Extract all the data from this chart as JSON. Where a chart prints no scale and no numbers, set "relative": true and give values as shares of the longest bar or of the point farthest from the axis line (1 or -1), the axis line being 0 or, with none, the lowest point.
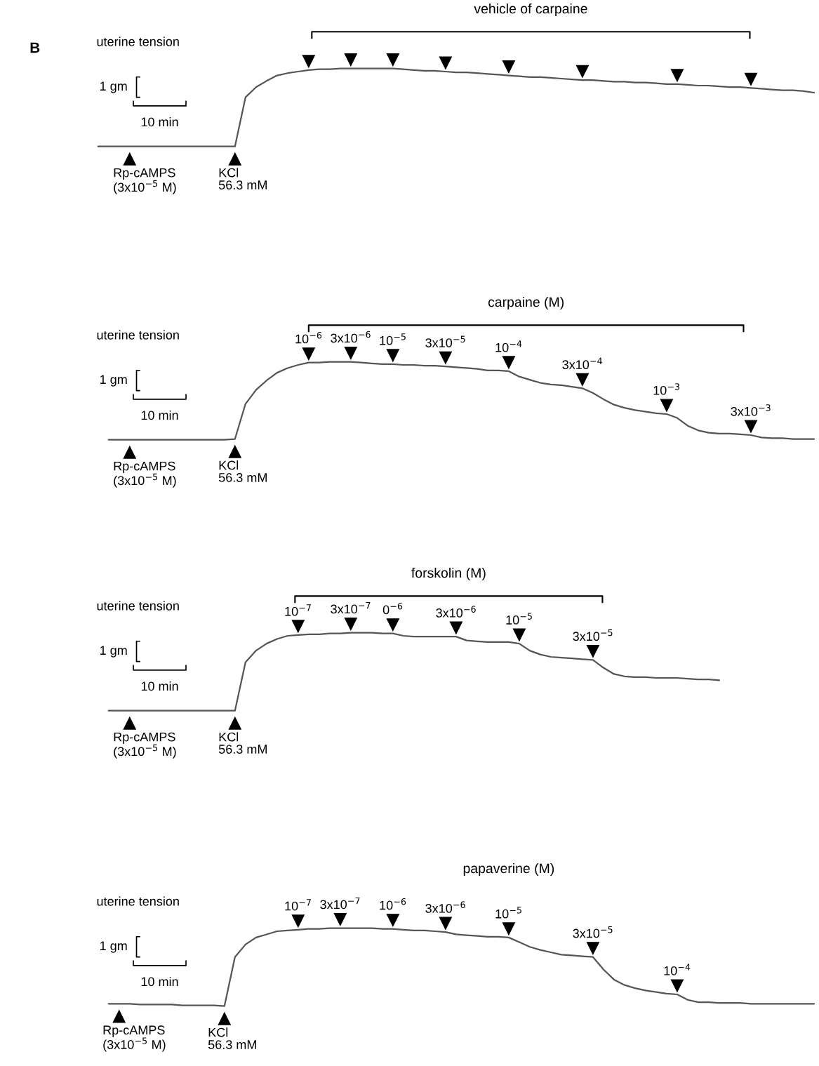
{
  "chart_data": [
    {
      "type": "line",
      "relative": true,
      "title": "vehicle of carpaine",
      "ylabel": "uterine tension",
      "tick_labels": false,
      "grid": false,
      "line_style": "solid",
      "categories": [
        null,
        null,
        null,
        null,
        null,
        null,
        null,
        null,
        null,
        null,
        null,
        null,
        null,
        null,
        null,
        null,
        null,
        null,
        null,
        null,
        null,
        null,
        null,
        null,
        null,
        null,
        null,
        null,
        null,
        null,
        null,
        null,
        null,
        null,
        null,
        null,
        null,
        null,
        null,
        null,
        null,
        null,
        null,
        null,
        null,
        null,
        null,
        null,
        null,
        null,
        null,
        null,
        null,
        null,
        null,
        null,
        null,
        null,
        null,
        null,
        null,
        null,
        null,
        null,
        null,
        null,
        null,
        null,
        null
      ],
      "series": [
        {
          "color": "#555555",
          "values": [
            0,
            0,
            0,
            0,
            0,
            0,
            0,
            0,
            0,
            0,
            0,
            0,
            0,
            0,
            0.63,
            0.76,
            0.84,
            0.91,
            0.94,
            0.96,
            0.98,
            0.99,
            0.99,
            1,
            1,
            1,
            1,
            1,
            1,
            0.99,
            0.98,
            0.97,
            0.97,
            0.96,
            0.95,
            0.95,
            0.94,
            0.93,
            0.92,
            0.91,
            0.9,
            0.89,
            0.89,
            0.88,
            0.87,
            0.86,
            0.85,
            0.85,
            0.84,
            0.83,
            0.83,
            0.82,
            0.82,
            0.81,
            0.8,
            0.8,
            0.79,
            0.78,
            0.78,
            0.77,
            0.76,
            0.76,
            0.75,
            0.74,
            0.73,
            0.72,
            0.72,
            0.71,
            0.69
          ]
        }
      ],
      "annotations": [
        "B",
        "1 gm",
        "10 min",
        "Rp-cAMPS\n(3x10$^{−5}$ M)",
        "KCl\n56.3 mM"
      ]
    },
    {
      "type": "line",
      "relative": true,
      "title": "carpaine (M)",
      "ylabel": "uterine tension",
      "tick_labels": false,
      "grid": false,
      "line_style": "solid",
      "categories": [
        null,
        null,
        null,
        null,
        null,
        null,
        null,
        null,
        null,
        null,
        null,
        null,
        null,
        null,
        null,
        null,
        null,
        null,
        null,
        null,
        null,
        null,
        null,
        null,
        null,
        null,
        null,
        null,
        null,
        null,
        null,
        null,
        null,
        null,
        null,
        null,
        null,
        null,
        null,
        null,
        null,
        null,
        null,
        null,
        null,
        null,
        null,
        null,
        null,
        null,
        null,
        null,
        null,
        null,
        null,
        null,
        null,
        null,
        null,
        null,
        null,
        null,
        null,
        null,
        null,
        null,
        null,
        null,
        null
      ],
      "series": [
        {
          "color": "#555555",
          "values": [
            null,
            0,
            0,
            0,
            0,
            0,
            0,
            0,
            0,
            0,
            0,
            0,
            0,
            0.01,
            0.46,
            0.64,
            0.76,
            0.86,
            0.92,
            0.96,
            0.99,
            0.99,
            1,
            1,
            1,
            0.99,
            0.98,
            0.97,
            0.97,
            0.96,
            0.96,
            0.95,
            0.95,
            0.94,
            0.93,
            0.92,
            0.91,
            0.89,
            0.89,
            0.88,
            0.81,
            0.77,
            0.73,
            0.71,
            0.7,
            0.68,
            0.66,
            0.6,
            0.52,
            0.45,
            0.41,
            0.38,
            0.36,
            0.34,
            0.33,
            0.28,
            0.18,
            0.12,
            0.09,
            0.08,
            0.08,
            0.07,
            0.06,
            0.03,
            0.02,
            0.02,
            0.01,
            0.01,
            0.01
          ]
        }
      ],
      "annotations": [
        "1 gm",
        "10 min",
        "Rp-cAMPS\n(3x10$^{−5}$ M)",
        "KCl\n56.3 mM",
        "10$^{−6}$",
        "3x10$^{−6}$",
        "10$^{−5}$",
        "3x10$^{−5}$",
        "10$^{−4}$",
        "3x10$^{−4}$",
        "10$^{−3}$",
        "3x10$^{−3}$"
      ]
    },
    {
      "type": "line",
      "relative": true,
      "title": "forskolin (M)",
      "ylabel": "uterine tension",
      "tick_labels": false,
      "grid": false,
      "line_style": "solid",
      "categories": [
        null,
        null,
        null,
        null,
        null,
        null,
        null,
        null,
        null,
        null,
        null,
        null,
        null,
        null,
        null,
        null,
        null,
        null,
        null,
        null,
        null,
        null,
        null,
        null,
        null,
        null,
        null,
        null,
        null,
        null,
        null,
        null,
        null,
        null,
        null,
        null,
        null,
        null,
        null,
        null,
        null,
        null,
        null,
        null,
        null,
        null,
        null,
        null,
        null,
        null,
        null,
        null,
        null,
        null,
        null,
        null,
        null,
        null,
        null,
        null,
        null,
        null,
        null,
        null,
        null,
        null,
        null,
        null,
        null
      ],
      "series": [
        {
          "color": "#555555",
          "values": [
            null,
            0,
            0,
            0,
            0,
            0,
            0,
            0,
            0,
            0,
            0,
            0,
            0,
            0,
            0.62,
            0.77,
            0.86,
            0.92,
            0.96,
            0.97,
            0.98,
            0.98,
            0.99,
            0.99,
            1,
            1,
            1,
            0.99,
            0.99,
            0.96,
            0.95,
            0.95,
            0.95,
            0.95,
            0.95,
            0.9,
            0.89,
            0.88,
            0.88,
            0.88,
            0.86,
            0.77,
            0.72,
            0.69,
            0.68,
            0.67,
            0.66,
            0.65,
            0.55,
            0.47,
            0.44,
            0.43,
            0.43,
            0.42,
            0.42,
            0.42,
            0.41,
            0.4,
            0.4,
            0.39,
            null,
            null,
            null,
            null,
            null,
            null,
            null,
            null,
            null
          ]
        }
      ],
      "annotations": [
        "1 gm",
        "10 min",
        "Rp-cAMPS\n(3x10$^{−5}$ M)",
        "KCl\n56.3 mM",
        "10$^{−7}$",
        "3x10$^{−7}$",
        "0$^{−6}$",
        "3x10$^{−6}$",
        "10$^{−5}$",
        "3x10$^{−5}$"
      ]
    },
    {
      "type": "line",
      "relative": true,
      "title": "papaverine (M)",
      "ylabel": "uterine tension",
      "tick_labels": false,
      "grid": false,
      "line_style": "solid",
      "categories": [
        null,
        null,
        null,
        null,
        null,
        null,
        null,
        null,
        null,
        null,
        null,
        null,
        null,
        null,
        null,
        null,
        null,
        null,
        null,
        null,
        null,
        null,
        null,
        null,
        null,
        null,
        null,
        null,
        null,
        null,
        null,
        null,
        null,
        null,
        null,
        null,
        null,
        null,
        null,
        null,
        null,
        null,
        null,
        null,
        null,
        null,
        null,
        null,
        null,
        null,
        null,
        null,
        null,
        null,
        null,
        null,
        null,
        null,
        null,
        null,
        null,
        null,
        null,
        null,
        null,
        null,
        null,
        null,
        null
      ],
      "series": [
        {
          "color": "#555555",
          "values": [
            null,
            0.03,
            0.03,
            0.03,
            0.02,
            0.02,
            0.02,
            0.02,
            0.01,
            0.01,
            0.01,
            0.01,
            0,
            0.63,
            0.79,
            0.88,
            0.92,
            0.96,
            0.97,
            0.98,
            0.99,
            0.99,
            1,
            1,
            1,
            1,
            1,
            0.99,
            0.99,
            0.98,
            0.97,
            0.97,
            0.96,
            0.95,
            0.92,
            0.91,
            0.9,
            0.89,
            0.89,
            0.88,
            0.82,
            0.76,
            0.72,
            0.69,
            0.66,
            0.65,
            0.64,
            0.63,
            0.47,
            0.34,
            0.27,
            0.23,
            0.2,
            0.18,
            0.16,
            0.15,
            0.08,
            0.05,
            0.05,
            0.04,
            0.04,
            0.04,
            0.03,
            0.03,
            0.03,
            0.03,
            0.03,
            0.03,
            0.03
          ]
        }
      ],
      "annotations": [
        "1 gm",
        "10 min",
        "Rp-cAMPS\n(3x10$^{−5}$ M)",
        "KCl\n56.3 mM",
        "10$^{−7}$",
        "3x10$^{−7}$",
        "10$^{−6}$",
        "3x10$^{−6}$",
        "10$^{−5}$",
        "3x10$^{−5}$",
        "10$^{−4}$"
      ]
    }
  ]
}
